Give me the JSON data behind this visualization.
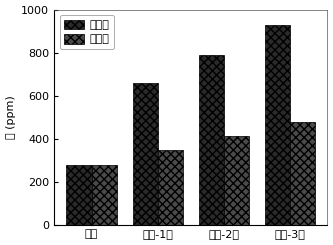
{
  "categories": [
    "真空",
    "空气-1天",
    "空气-2天",
    "空气-3天"
  ],
  "values_before": [
    275,
    660,
    790,
    930
  ],
  "values_after": [
    275,
    345,
    410,
    475
  ],
  "bar_color_before": "#2a2a2a",
  "bar_color_after": "#4a4a4a",
  "hatch_before": "xxxx",
  "hatch_after": "xxxx",
  "ylabel": "水 (ppm)",
  "ylim": [
    0,
    1000
  ],
  "yticks": [
    0,
    200,
    400,
    600,
    800,
    1000
  ],
  "legend_before": "包覆前",
  "legend_after": "包覆后",
  "bar_width": 0.38,
  "figsize": [
    3.33,
    2.45
  ],
  "dpi": 100,
  "background_color": "#ffffff",
  "spine_color": "#555555"
}
